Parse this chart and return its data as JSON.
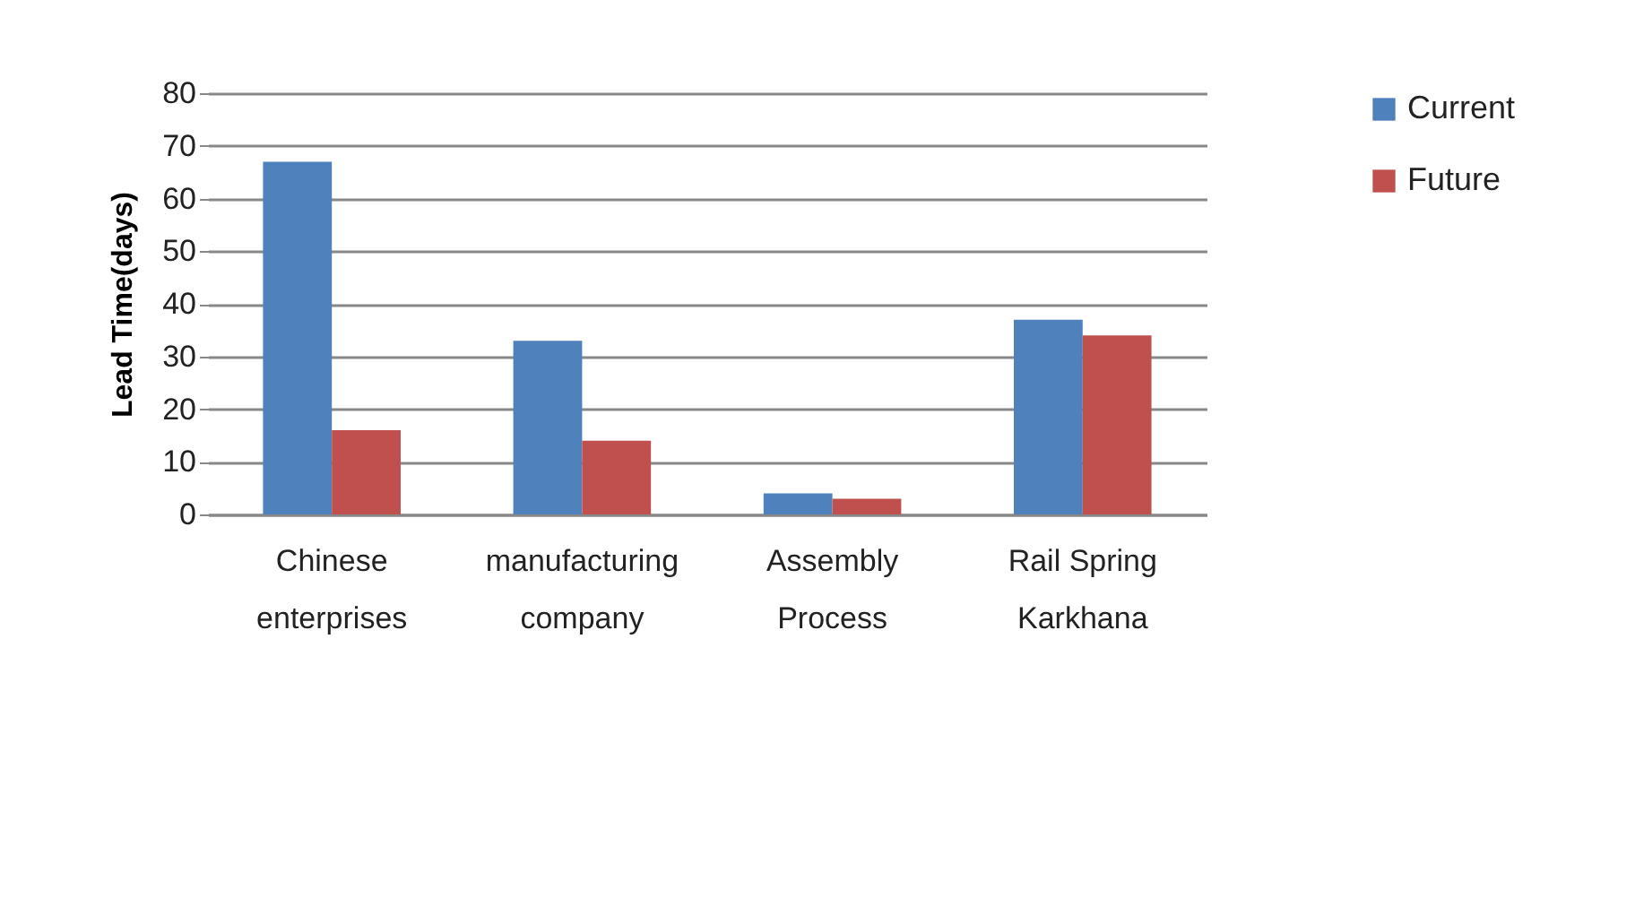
{
  "chart_data": {
    "type": "bar",
    "ylabel": "Lead Time(days)",
    "categories": [
      "Chinese enterprises",
      "manufacturing company",
      "Assembly Process",
      "Rail Spring Karkhana"
    ],
    "series": [
      {
        "name": "Current",
        "color": "#4f81bd",
        "values": [
          67,
          33,
          4,
          37
        ]
      },
      {
        "name": "Future",
        "color": "#c0504d",
        "values": [
          16,
          14,
          3,
          34
        ]
      }
    ],
    "ylim": [
      0,
      80
    ],
    "yticks": [
      0,
      10,
      20,
      30,
      40,
      50,
      60,
      70,
      80
    ],
    "grid": "y",
    "legend": "right"
  }
}
